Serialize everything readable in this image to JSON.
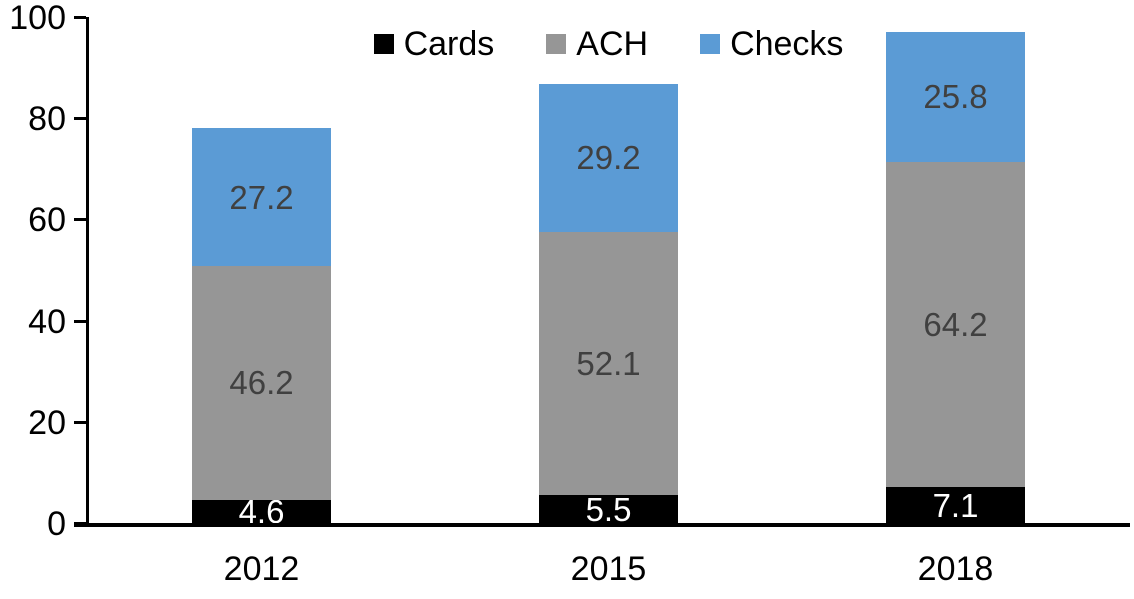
{
  "chart_data": {
    "type": "bar",
    "stacked": true,
    "title": "",
    "xlabel": "",
    "ylabel": "",
    "categories": [
      "2012",
      "2015",
      "2018"
    ],
    "series": [
      {
        "name": "Cards",
        "color": "#000000",
        "label_color": "#ffffff",
        "values": [
          4.6,
          5.5,
          7.1
        ]
      },
      {
        "name": "ACH",
        "color": "#969696",
        "label_color": "#404040",
        "values": [
          46.2,
          52.1,
          64.2
        ]
      },
      {
        "name": "Checks",
        "color": "#5b9bd5",
        "label_color": "#404040",
        "values": [
          27.2,
          29.2,
          25.8
        ]
      }
    ],
    "ylim": [
      0,
      100
    ],
    "yticks": [
      0,
      20,
      40,
      60,
      80,
      100
    ],
    "legend_position": "top-center",
    "grid": false,
    "axis_color": "#000000",
    "background_color": "#ffffff"
  }
}
